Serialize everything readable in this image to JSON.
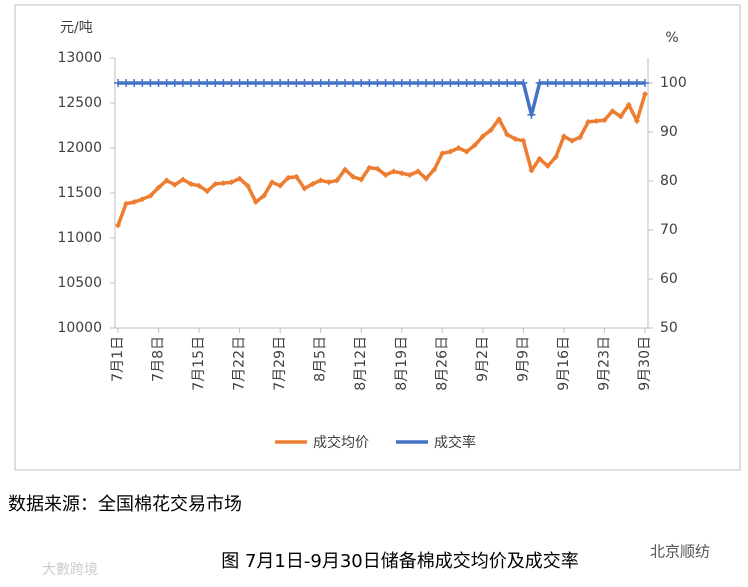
{
  "chart_data": {
    "type": "line",
    "y_unit": "元/吨",
    "y2_unit": "%",
    "categories": [
      "7月1日",
      null,
      null,
      null,
      null,
      "7月8日",
      null,
      null,
      null,
      null,
      "7月15日",
      null,
      null,
      null,
      null,
      "7月22日",
      null,
      null,
      null,
      null,
      "7月29日",
      null,
      null,
      null,
      null,
      "8月5日",
      null,
      null,
      null,
      null,
      "8月12日",
      null,
      null,
      null,
      null,
      "8月19日",
      null,
      null,
      null,
      null,
      "8月26日",
      null,
      null,
      null,
      null,
      "9月2日",
      null,
      null,
      null,
      null,
      "9月9日",
      null,
      null,
      null,
      null,
      "9月16日",
      null,
      null,
      null,
      null,
      "9月23日",
      null,
      null,
      null,
      null,
      "9月30日"
    ],
    "series": [
      {
        "name": "成交均价",
        "color": "#ed7d31",
        "axis": "y",
        "values": [
          11140,
          11380,
          11400,
          11430,
          11470,
          11560,
          11640,
          11590,
          11650,
          11600,
          11580,
          11520,
          11600,
          11610,
          11620,
          11660,
          11580,
          11400,
          11470,
          11620,
          11580,
          11670,
          11680,
          11550,
          11600,
          11640,
          11620,
          11640,
          11760,
          11680,
          11650,
          11780,
          11770,
          11700,
          11740,
          11720,
          11700,
          11740,
          11660,
          11760,
          11940,
          11960,
          12000,
          11960,
          12030,
          12130,
          12200,
          12320,
          12150,
          12100,
          12080,
          11750,
          11880,
          11800,
          11900,
          12130,
          12080,
          12120,
          12290,
          12300,
          12310,
          12410,
          12350,
          12480,
          12300,
          12600
        ]
      },
      {
        "name": "成交率",
        "color": "#4472c4",
        "axis": "y2",
        "values": [
          100,
          100,
          100,
          100,
          100,
          100,
          100,
          100,
          100,
          100,
          100,
          100,
          100,
          100,
          100,
          100,
          100,
          100,
          100,
          100,
          100,
          100,
          100,
          100,
          100,
          100,
          100,
          100,
          100,
          100,
          100,
          100,
          100,
          100,
          100,
          100,
          100,
          100,
          100,
          100,
          100,
          100,
          100,
          100,
          100,
          100,
          100,
          100,
          100,
          100,
          100,
          93.5,
          100,
          100,
          100,
          100,
          100,
          100,
          100,
          100,
          100,
          100,
          100,
          100,
          100,
          100
        ]
      }
    ],
    "ylim": [
      10000,
      13000
    ],
    "yticks": [
      10000,
      10500,
      11000,
      11500,
      12000,
      12500,
      13000
    ],
    "y2lim": [
      50,
      105.1
    ],
    "y2ticks": [
      50,
      60,
      70,
      80,
      90,
      100
    ],
    "legend": "bottom"
  },
  "source": "数据来源：全国棉花交易市场",
  "caption": "图 7月1日-9月30日储备棉成交均价及成交率",
  "watermarks": [
    "北京顺纺",
    "大數跨境"
  ]
}
